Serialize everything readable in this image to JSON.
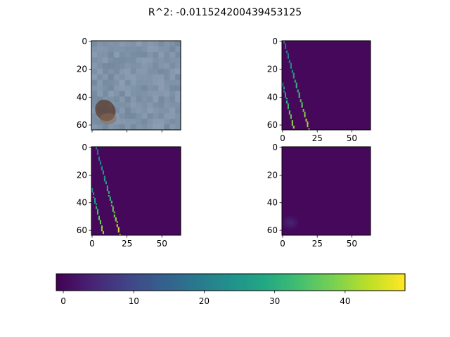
{
  "chart_data": {
    "type": "heatmap",
    "title": "R^2: -0.011524200439453125",
    "panels": [
      {
        "name": "image",
        "render": "texture",
        "xlim": [
          -0.5,
          63.5
        ],
        "ylim": [
          63.5,
          -0.5
        ],
        "xticks": [
          0,
          25,
          50
        ],
        "yticks": [
          0,
          20,
          40,
          60
        ],
        "show_xticks": false
      },
      {
        "name": "map-a",
        "render": "map",
        "xlim": [
          -0.5,
          63.5
        ],
        "ylim": [
          63.5,
          -0.5
        ],
        "xticks": [
          0,
          25,
          50
        ],
        "yticks": [
          0,
          20,
          40,
          60
        ],
        "show_xticks": true,
        "lines": [
          {
            "x0": 1,
            "y0": 0,
            "x1": 19,
            "y1": 63,
            "min": 16,
            "max": 48
          },
          {
            "x0": 0,
            "y0": 30,
            "x1": 8,
            "y1": 63,
            "min": 22,
            "max": 46
          }
        ]
      },
      {
        "name": "map-b",
        "render": "map",
        "xlim": [
          -0.5,
          63.5
        ],
        "ylim": [
          63.5,
          -0.5
        ],
        "xticks": [
          0,
          25,
          50
        ],
        "yticks": [
          0,
          20,
          40,
          60
        ],
        "show_xticks": true,
        "lines": [
          {
            "x0": 3,
            "y0": 0,
            "x1": 20,
            "y1": 63,
            "min": 16,
            "max": 48
          },
          {
            "x0": 0,
            "y0": 30,
            "x1": 8,
            "y1": 63,
            "min": 22,
            "max": 46
          }
        ]
      },
      {
        "name": "map-c",
        "render": "blob",
        "xlim": [
          -0.5,
          63.5
        ],
        "ylim": [
          63.5,
          -0.5
        ],
        "xticks": [
          0,
          25,
          50
        ],
        "yticks": [
          0,
          20,
          40,
          60
        ],
        "show_xticks": true,
        "blob": {
          "cx": 6,
          "cy": 55,
          "peak": 5
        }
      }
    ],
    "colorbar": {
      "vmin": -1,
      "vmax": 48.5,
      "ticks": [
        0,
        10,
        20,
        30,
        40
      ],
      "orientation": "horizontal",
      "colormap": "viridis"
    }
  }
}
